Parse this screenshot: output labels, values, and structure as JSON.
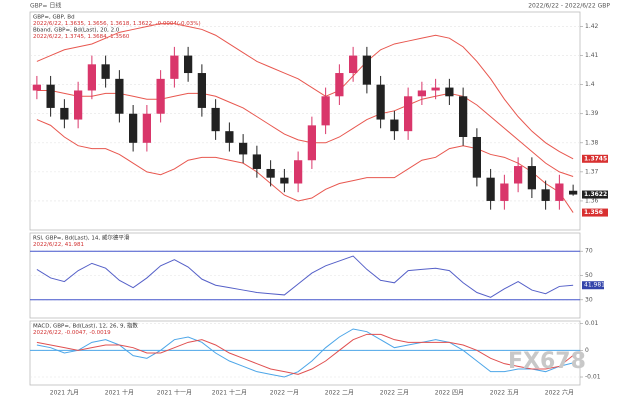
{
  "header": {
    "left": "GBP= 日线",
    "right": "2022/6/22 - 2022/6/22 GBP"
  },
  "watermark": "FX678",
  "chart_data": [
    {
      "type": "candlestick",
      "legend_lines": [
        "GBP=, GBP, Bd",
        "2022/6/22, 1.3635, 1.3656, 1.3618, 1.3622, -0.0004(-0.03%)",
        "Bband, GBP=, Bd(Last), 20, 2.0",
        "2022/6/22, 1.3745, 1.3684, 1.3560"
      ],
      "categories": [
        null,
        null,
        "2021 九月",
        null,
        null,
        null,
        "2021 十月",
        null,
        null,
        null,
        "2021 十一月",
        null,
        null,
        null,
        "2021 十二月",
        null,
        null,
        null,
        "2022 一月",
        null,
        null,
        null,
        "2022 二月",
        null,
        null,
        null,
        "2022 三月",
        null,
        null,
        null,
        "2022 四月",
        null,
        null,
        null,
        "2022 五月",
        null,
        null,
        null,
        "2022 六月",
        null
      ],
      "open": [
        1.398,
        1.4,
        1.392,
        1.388,
        1.398,
        1.407,
        1.402,
        1.39,
        1.38,
        1.39,
        1.402,
        1.41,
        1.404,
        1.392,
        1.384,
        1.38,
        1.376,
        1.371,
        1.368,
        1.366,
        1.374,
        1.386,
        1.396,
        1.404,
        1.41,
        1.4,
        1.388,
        1.384,
        1.396,
        1.398,
        1.399,
        1.396,
        1.382,
        1.368,
        1.36,
        1.366,
        1.372,
        1.364,
        1.36,
        1.3635
      ],
      "high": [
        1.403,
        1.403,
        1.395,
        1.401,
        1.41,
        1.41,
        1.405,
        1.393,
        1.393,
        1.405,
        1.413,
        1.413,
        1.407,
        1.395,
        1.387,
        1.383,
        1.379,
        1.374,
        1.371,
        1.377,
        1.389,
        1.399,
        1.407,
        1.413,
        1.413,
        1.403,
        1.391,
        1.399,
        1.401,
        1.402,
        1.402,
        1.399,
        1.385,
        1.371,
        1.369,
        1.375,
        1.375,
        1.367,
        1.369,
        1.3656
      ],
      "low": [
        1.395,
        1.389,
        1.385,
        1.385,
        1.395,
        1.399,
        1.387,
        1.377,
        1.377,
        1.387,
        1.399,
        1.401,
        1.389,
        1.381,
        1.377,
        1.373,
        1.368,
        1.365,
        1.363,
        1.363,
        1.371,
        1.383,
        1.393,
        1.401,
        1.397,
        1.385,
        1.381,
        1.381,
        1.393,
        1.395,
        1.393,
        1.379,
        1.365,
        1.357,
        1.357,
        1.363,
        1.361,
        1.357,
        1.357,
        1.3618
      ],
      "close": [
        1.4,
        1.392,
        1.388,
        1.398,
        1.407,
        1.402,
        1.39,
        1.38,
        1.39,
        1.402,
        1.41,
        1.404,
        1.392,
        1.384,
        1.38,
        1.376,
        1.371,
        1.368,
        1.366,
        1.374,
        1.386,
        1.396,
        1.404,
        1.41,
        1.4,
        1.388,
        1.384,
        1.396,
        1.398,
        1.399,
        1.396,
        1.382,
        1.368,
        1.36,
        1.366,
        1.372,
        1.364,
        1.36,
        1.366,
        1.3622
      ],
      "up_color": "#d9366a",
      "down_color": "#222222",
      "series": [
        {
          "color": "#e8574f",
          "values": [
            1.408,
            1.41,
            1.412,
            1.413,
            1.414,
            1.416,
            1.418,
            1.419,
            1.42,
            1.421,
            1.421,
            1.42,
            1.419,
            1.417,
            1.414,
            1.411,
            1.408,
            1.406,
            1.404,
            1.402,
            1.399,
            1.396,
            1.398,
            1.403,
            1.408,
            1.412,
            1.414,
            1.415,
            1.416,
            1.417,
            1.416,
            1.413,
            1.408,
            1.402,
            1.395,
            1.389,
            1.384,
            1.38,
            1.377,
            1.3745
          ]
        },
        {
          "color": "#e8574f",
          "values": [
            1.398,
            1.398,
            1.397,
            1.396,
            1.396,
            1.397,
            1.397,
            1.396,
            1.395,
            1.395,
            1.396,
            1.397,
            1.397,
            1.396,
            1.394,
            1.392,
            1.389,
            1.386,
            1.383,
            1.381,
            1.38,
            1.38,
            1.382,
            1.385,
            1.388,
            1.39,
            1.391,
            1.393,
            1.395,
            1.396,
            1.397,
            1.396,
            1.393,
            1.389,
            1.385,
            1.381,
            1.377,
            1.373,
            1.37,
            1.3684
          ]
        },
        {
          "color": "#e8574f",
          "values": [
            1.388,
            1.386,
            1.382,
            1.379,
            1.378,
            1.378,
            1.376,
            1.373,
            1.37,
            1.369,
            1.371,
            1.374,
            1.375,
            1.375,
            1.374,
            1.373,
            1.37,
            1.366,
            1.362,
            1.36,
            1.361,
            1.364,
            1.366,
            1.367,
            1.368,
            1.368,
            1.368,
            1.371,
            1.374,
            1.375,
            1.378,
            1.379,
            1.378,
            1.376,
            1.375,
            1.373,
            1.37,
            1.366,
            1.363,
            1.356
          ]
        }
      ],
      "ylim": [
        1.35,
        1.425
      ],
      "yticks": [
        1.36,
        1.37,
        1.38,
        1.39,
        1.4,
        1.41,
        1.42
      ],
      "grid": true
    },
    {
      "type": "line",
      "legend_lines": [
        "RSI, GBP=, Bd(Last), 14, 威尔德平滑",
        "2022/6/22, 41.981"
      ],
      "series": [
        {
          "color": "#5560c8",
          "values": [
            55,
            48,
            45,
            54,
            60,
            56,
            46,
            40,
            48,
            58,
            63,
            57,
            47,
            42,
            40,
            38,
            36,
            35,
            34,
            43,
            52,
            58,
            62,
            66,
            55,
            46,
            44,
            54,
            55,
            56,
            54,
            44,
            36,
            32,
            39,
            45,
            38,
            35,
            41,
            41.981
          ]
        }
      ],
      "hlines": [
        30,
        70
      ],
      "hline_color": "#4455cc",
      "ylim": [
        15,
        85
      ],
      "yticks": [
        30,
        50,
        70
      ],
      "grid": true
    },
    {
      "type": "line",
      "legend_lines": [
        "MACD, GBP=, Bd(Last), 12, 26, 9, 指数",
        "2022/6/22, -0.0047, -0.0019"
      ],
      "series": [
        {
          "color": "#4da6e8",
          "values": [
            0.002,
            0.001,
            -0.001,
            0.0,
            0.003,
            0.004,
            0.002,
            -0.002,
            -0.003,
            0.0,
            0.004,
            0.005,
            0.003,
            -0.001,
            -0.004,
            -0.006,
            -0.008,
            -0.009,
            -0.01,
            -0.008,
            -0.004,
            0.001,
            0.005,
            0.008,
            0.007,
            0.004,
            0.001,
            0.002,
            0.003,
            0.004,
            0.003,
            0.0,
            -0.004,
            -0.008,
            -0.008,
            -0.007,
            -0.007,
            -0.008,
            -0.006,
            -0.0047
          ]
        },
        {
          "color": "#e05050",
          "values": [
            0.003,
            0.002,
            0.001,
            0.0,
            0.001,
            0.002,
            0.002,
            0.001,
            -0.001,
            -0.001,
            0.001,
            0.003,
            0.004,
            0.002,
            -0.001,
            -0.003,
            -0.005,
            -0.007,
            -0.008,
            -0.009,
            -0.007,
            -0.004,
            0.0,
            0.004,
            0.006,
            0.006,
            0.004,
            0.003,
            0.003,
            0.003,
            0.003,
            0.002,
            0.0,
            -0.003,
            -0.005,
            -0.006,
            -0.007,
            -0.007,
            -0.006,
            -0.0019
          ]
        }
      ],
      "hlines": [
        0
      ],
      "hline_color": "#4da6e8",
      "ylim": [
        -0.013,
        0.011
      ],
      "yticks": [
        -0.01,
        0,
        0.01
      ],
      "grid": true
    }
  ]
}
